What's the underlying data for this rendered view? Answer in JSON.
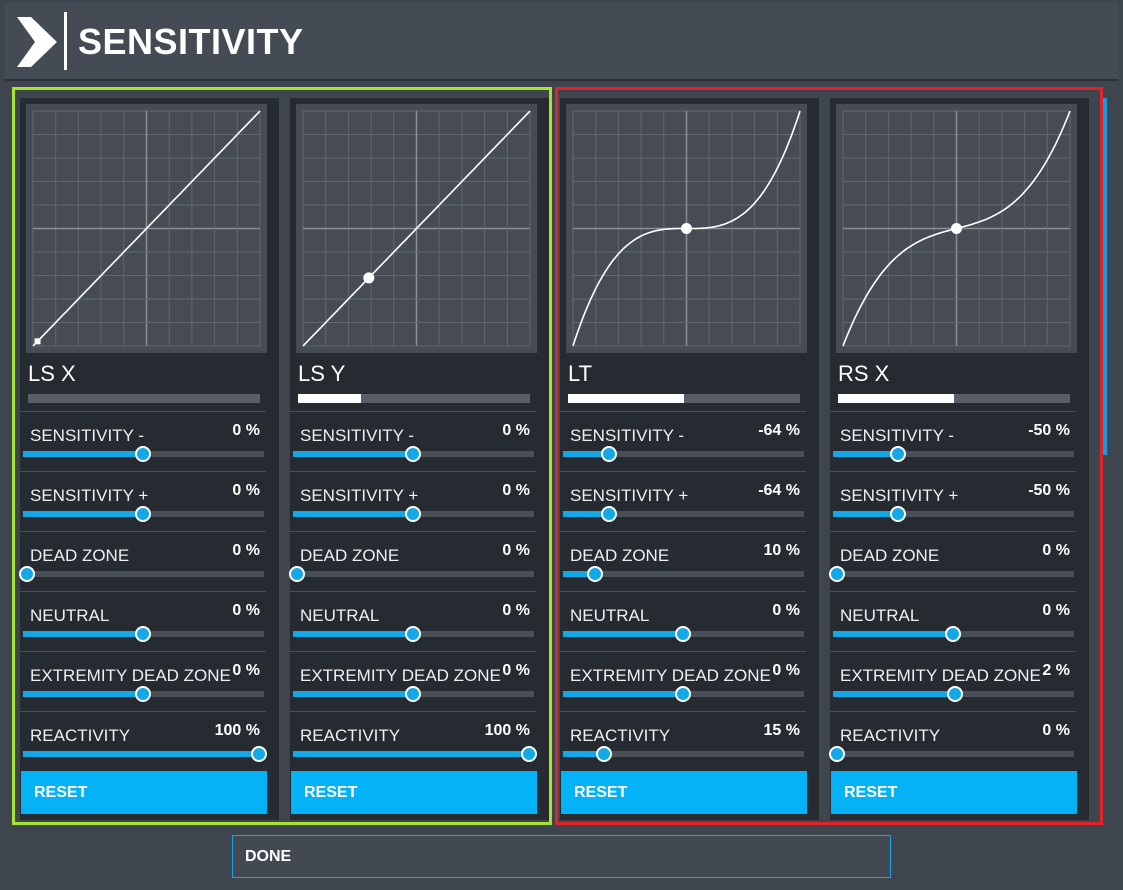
{
  "header": {
    "title": "SENSITIVITY",
    "logo_icon": "chevron-right-icon"
  },
  "theme": {
    "accent": "#05b2f5",
    "group_left_border": "#a6e32a",
    "group_right_border": "#e3222a"
  },
  "cards": [
    {
      "label": "LS X",
      "input_level": 0,
      "curve": "linear",
      "marker": [
        -0.96,
        -0.96
      ],
      "marker_shape": "square",
      "settings": [
        {
          "label": "SENSITIVITY -",
          "value": "0 %",
          "level": 0.5
        },
        {
          "label": "SENSITIVITY +",
          "value": "0 %",
          "level": 0.5
        },
        {
          "label": "DEAD ZONE",
          "value": "0 %",
          "level": 0
        },
        {
          "label": "NEUTRAL",
          "value": "0 %",
          "level": 0.5
        },
        {
          "label": "EXTREMITY DEAD ZONE",
          "value": "0 %",
          "level": 0.5
        },
        {
          "label": "REACTIVITY",
          "value": "100 %",
          "level": 1
        }
      ],
      "reset_label": "RESET"
    },
    {
      "label": "LS Y",
      "input_level": 0.27,
      "curve": "linear",
      "marker": [
        -0.42,
        -0.42
      ],
      "marker_shape": "circle",
      "settings": [
        {
          "label": "SENSITIVITY -",
          "value": "0 %",
          "level": 0.5
        },
        {
          "label": "SENSITIVITY +",
          "value": "0 %",
          "level": 0.5
        },
        {
          "label": "DEAD ZONE",
          "value": "0 %",
          "level": 0
        },
        {
          "label": "NEUTRAL",
          "value": "0 %",
          "level": 0.5
        },
        {
          "label": "EXTREMITY DEAD ZONE",
          "value": "0 %",
          "level": 0.5
        },
        {
          "label": "REACTIVITY",
          "value": "100 %",
          "level": 1
        }
      ],
      "reset_label": "RESET"
    },
    {
      "label": "LT",
      "input_level": 0.5,
      "curve": "cubic-steep",
      "marker": [
        0,
        0
      ],
      "marker_shape": "circle",
      "settings": [
        {
          "label": "SENSITIVITY -",
          "value": "-64 %",
          "level": 0.18
        },
        {
          "label": "SENSITIVITY +",
          "value": "-64 %",
          "level": 0.18
        },
        {
          "label": "DEAD ZONE",
          "value": "10 %",
          "level": 0.12
        },
        {
          "label": "NEUTRAL",
          "value": "0 %",
          "level": 0.5
        },
        {
          "label": "EXTREMITY DEAD ZONE",
          "value": "0 %",
          "level": 0.5
        },
        {
          "label": "REACTIVITY",
          "value": "15 %",
          "level": 0.16
        }
      ],
      "reset_label": "RESET"
    },
    {
      "label": "RS X",
      "input_level": 0.5,
      "curve": "cubic",
      "marker": [
        0,
        0
      ],
      "marker_shape": "circle",
      "settings": [
        {
          "label": "SENSITIVITY -",
          "value": "-50 %",
          "level": 0.265
        },
        {
          "label": "SENSITIVITY +",
          "value": "-50 %",
          "level": 0.265
        },
        {
          "label": "DEAD ZONE",
          "value": "0 %",
          "level": 0
        },
        {
          "label": "NEUTRAL",
          "value": "0 %",
          "level": 0.5
        },
        {
          "label": "EXTREMITY DEAD ZONE",
          "value": "2 %",
          "level": 0.51
        },
        {
          "label": "REACTIVITY",
          "value": "0 %",
          "level": 0
        }
      ],
      "reset_label": "RESET"
    }
  ],
  "footer": {
    "done_label": "DONE"
  }
}
